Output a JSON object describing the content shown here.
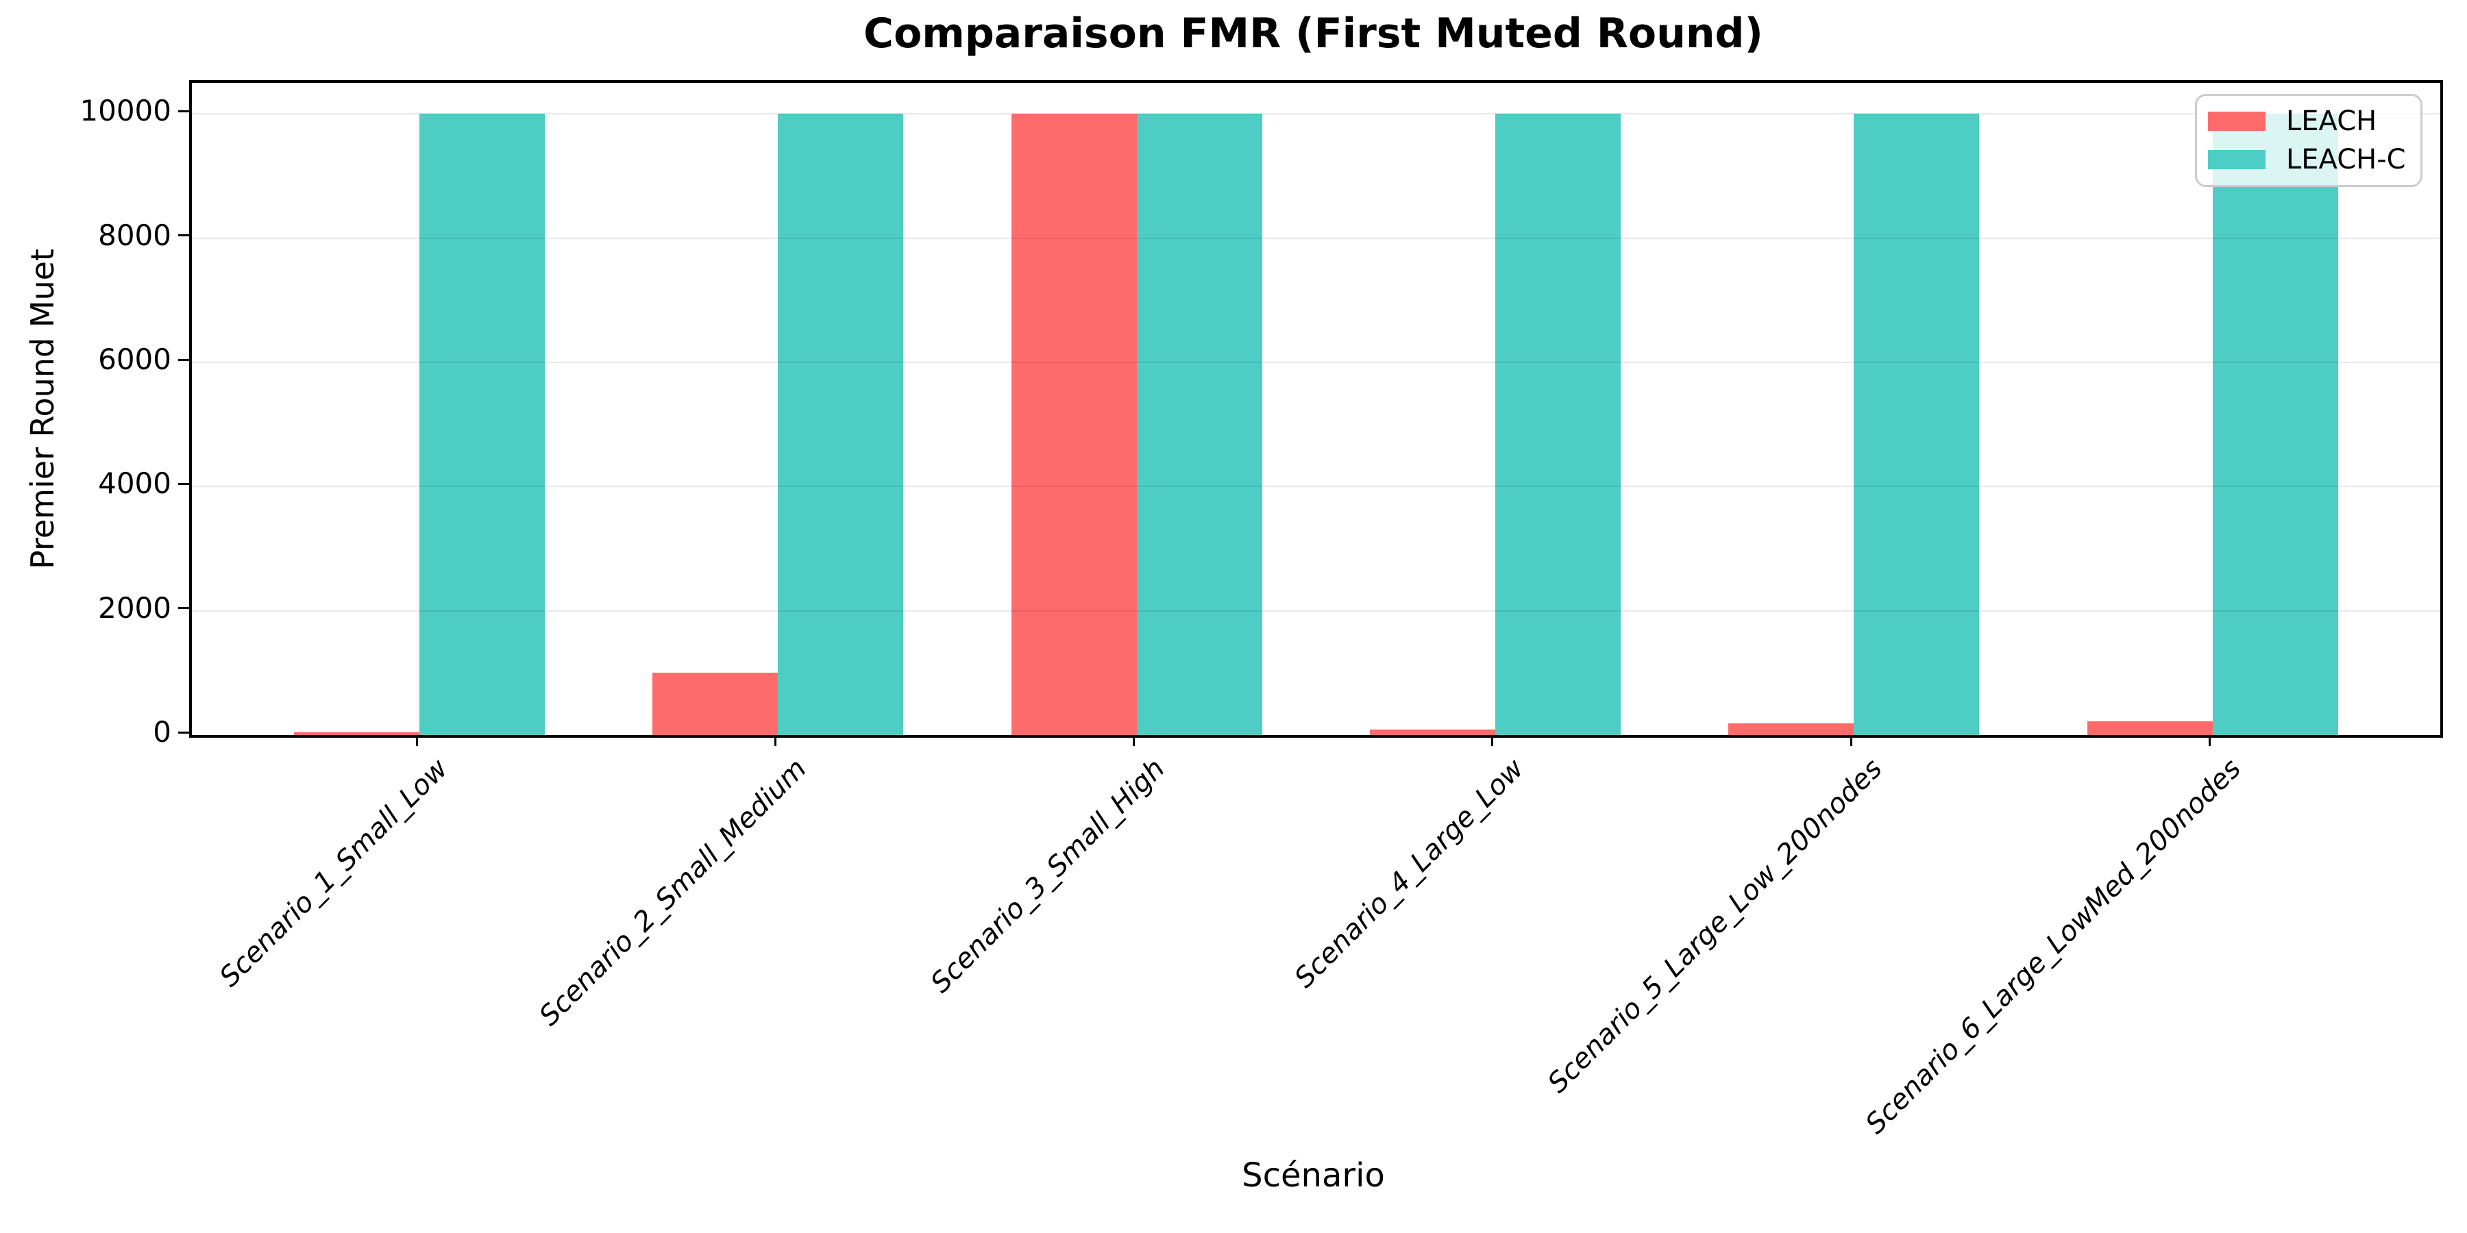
{
  "chart_data": {
    "type": "bar",
    "title": "Comparaison FMR (First Muted Round)",
    "xlabel": "Scénario",
    "ylabel": "Premier Round Muet",
    "categories": [
      "Scenario_1_Small_Low",
      "Scenario_2_Small_Medium",
      "Scenario_3_Small_High",
      "Scenario_4_Large_Low",
      "Scenario_5_Large_Low_200nodes",
      "Scenario_6_Large_LowMed_200nodes"
    ],
    "series": [
      {
        "name": "LEACH",
        "color": "#FF6B6B",
        "values": [
          40,
          1000,
          10000,
          90,
          190,
          220
        ]
      },
      {
        "name": "LEACH-C",
        "color": "#4ECDC4",
        "values": [
          10000,
          10000,
          10000,
          10000,
          10000,
          10000
        ]
      }
    ],
    "ylim": [
      0,
      10500
    ],
    "yticks": [
      0,
      2000,
      4000,
      6000,
      8000,
      10000
    ],
    "grid": true,
    "legend_position": "upper right",
    "bar_width": 0.35,
    "background_color": "#ffffff",
    "grid_color": "#e8e8e8",
    "spine_color": "#000000"
  }
}
